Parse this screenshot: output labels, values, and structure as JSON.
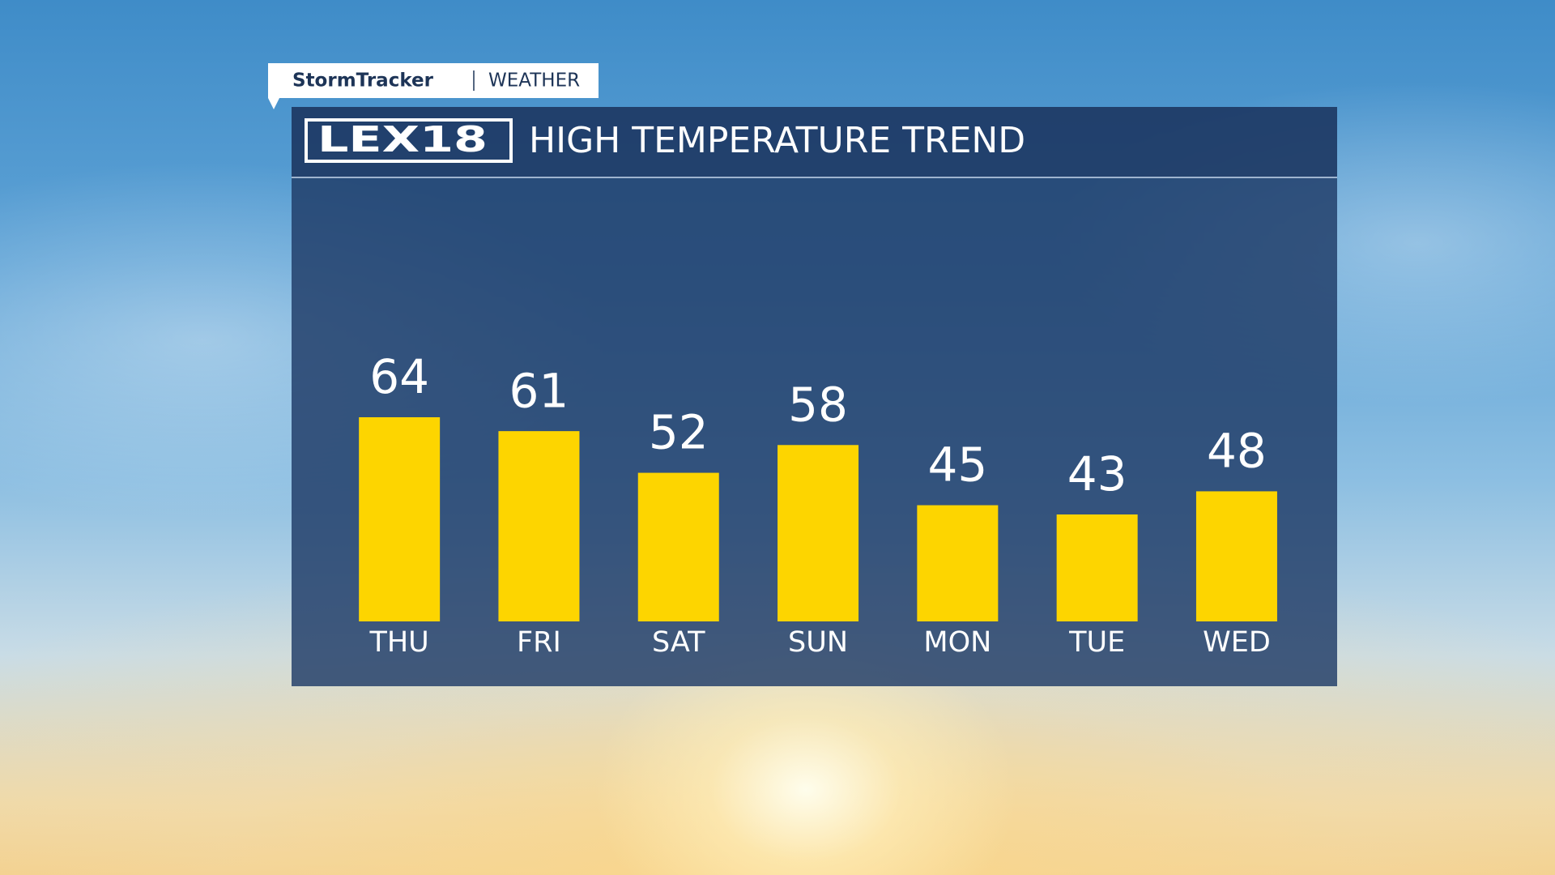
{
  "header": {
    "brand": "StormTracker",
    "section": "WEATHER",
    "logo": "LEX18"
  },
  "chart_data": {
    "type": "bar",
    "title": "HIGH TEMPERATURE TREND",
    "categories": [
      "THU",
      "FRI",
      "SAT",
      "SUN",
      "MON",
      "TUE",
      "WED"
    ],
    "values": [
      64,
      61,
      52,
      58,
      45,
      43,
      48
    ],
    "color": "#fdd500"
  }
}
